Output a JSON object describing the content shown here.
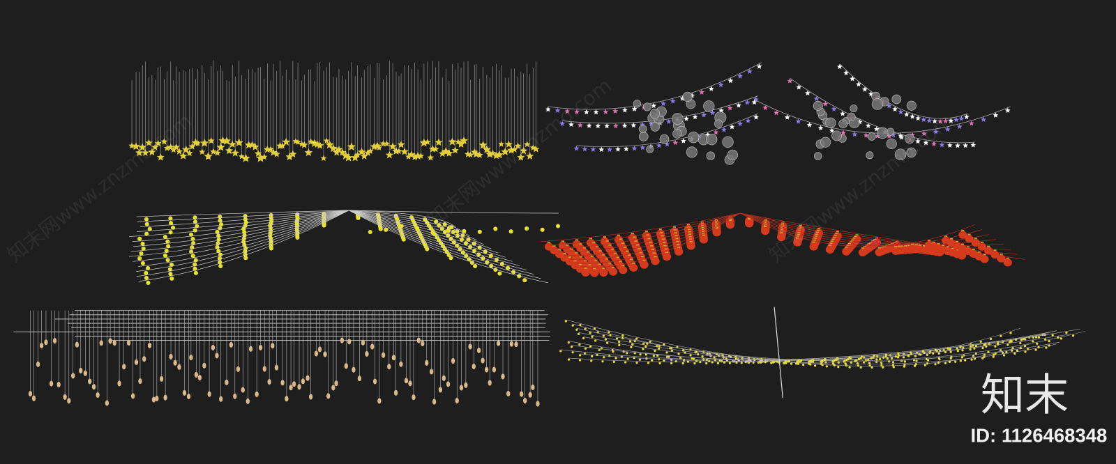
{
  "watermark": "知末网www.znzmo.com",
  "logo": "知末",
  "image_id": "ID: 1126468348"
}
